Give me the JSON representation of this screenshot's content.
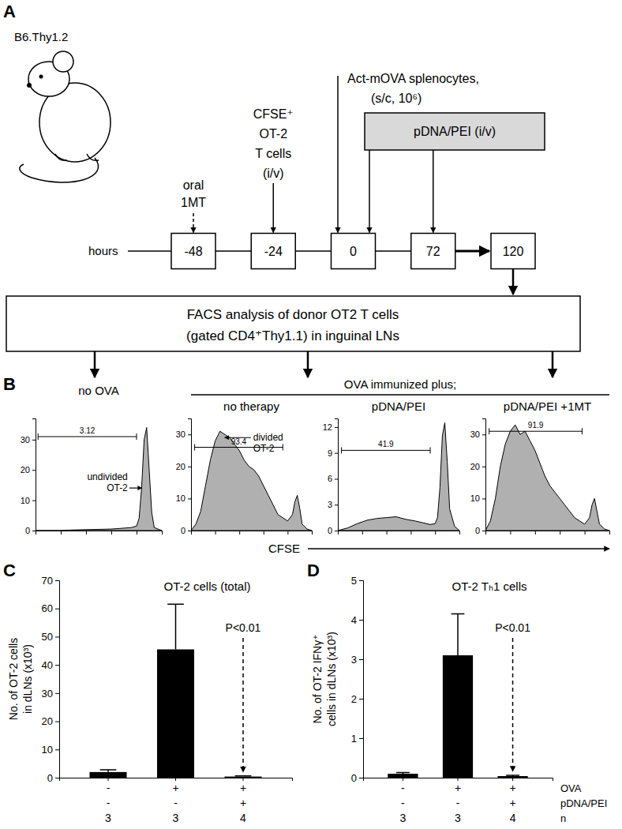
{
  "diagram": {
    "panel_label": "A",
    "mouse_label": "B6.Thy1.2",
    "timeline_label": "hours",
    "timepoints": [
      -48,
      -24,
      0,
      72,
      120
    ],
    "oral_treatment": [
      "oral",
      "1MT"
    ],
    "cell_transfer": [
      "CFSE⁺",
      "OT-2",
      "T cells",
      "(i/v)"
    ],
    "immunization": [
      "Act-mOVA splenocytes,",
      "(s/c, 10⁶)"
    ],
    "therapy": "pDNA/PEI (i/v)",
    "analysis": [
      "FACS analysis of donor OT2 T cells",
      "(gated CD4⁺Thy1.1) in inguinal LNs"
    ]
  },
  "panel_B": {
    "label": "B",
    "group_title": "OVA immunized plus;",
    "xlabel": "CFSE"
  },
  "chart_data": [
    {
      "type": "area",
      "title": "no OVA",
      "x": [
        0,
        10,
        20,
        30,
        40,
        50,
        60,
        70,
        76,
        80,
        82,
        84,
        86,
        88,
        90,
        92,
        94,
        100
      ],
      "values": [
        0,
        0,
        0,
        0.2,
        0.3,
        0.4,
        0.5,
        0.8,
        1,
        1.5,
        4,
        14,
        30,
        34,
        20,
        6,
        1,
        0
      ],
      "xlim": [
        0,
        100
      ],
      "xticks": [
        0,
        20,
        40,
        60,
        80,
        100
      ],
      "ylim": [
        0,
        37
      ],
      "yticks": [
        0,
        10,
        20,
        30
      ],
      "tick_labels": "y",
      "color": "#b0b0b0",
      "gate": {
        "x": [
          2,
          80
        ],
        "y": 31,
        "value": 3.12
      },
      "annotation": [
        "undivided",
        "OT-2"
      ]
    },
    {
      "type": "area",
      "title": "no therapy",
      "x": [
        0,
        4,
        8,
        12,
        16,
        20,
        24,
        28,
        32,
        36,
        40,
        44,
        48,
        52,
        56,
        60,
        64,
        68,
        72,
        76,
        80,
        84,
        86,
        88,
        90,
        92,
        96,
        100
      ],
      "values": [
        0,
        2,
        6,
        14,
        22,
        28,
        31,
        30,
        29,
        27,
        25,
        22,
        20,
        19,
        17,
        14,
        11,
        8,
        5,
        4,
        3,
        5,
        9,
        11,
        7,
        2,
        0.5,
        0
      ],
      "xlim": [
        0,
        100
      ],
      "xticks": [
        0,
        20,
        40,
        60,
        80,
        100
      ],
      "ylim": [
        0,
        35
      ],
      "yticks": [
        0,
        10,
        20,
        30
      ],
      "tick_labels": "y",
      "color": "#b0b0b0",
      "gate": {
        "x": [
          3,
          76
        ],
        "y": 26,
        "value": 93.4
      },
      "annotation": [
        "divided",
        "OT-2"
      ]
    },
    {
      "type": "area",
      "title": "pDNA/PEI",
      "x": [
        0,
        8,
        16,
        24,
        32,
        40,
        48,
        56,
        64,
        70,
        76,
        80,
        82,
        84,
        86,
        88,
        90,
        92,
        96,
        100
      ],
      "values": [
        0,
        0.3,
        0.8,
        1.2,
        1.4,
        1.5,
        1.6,
        1.3,
        1.1,
        0.9,
        0.7,
        0.8,
        1.5,
        5,
        11,
        12.5,
        8,
        2.5,
        0.5,
        0
      ],
      "xlim": [
        0,
        100
      ],
      "xticks": [
        0,
        20,
        40,
        60,
        80,
        100
      ],
      "ylim": [
        0,
        13
      ],
      "yticks": [
        0,
        3,
        6,
        9,
        12
      ],
      "tick_labels": "y",
      "color": "#b0b0b0",
      "gate": {
        "x": [
          3,
          76
        ],
        "y": 9.3,
        "value": 41.9
      }
    },
    {
      "type": "area",
      "title": "pDNA/PEI +1MT",
      "x": [
        0,
        4,
        8,
        12,
        16,
        20,
        24,
        28,
        32,
        36,
        40,
        44,
        48,
        52,
        56,
        60,
        64,
        68,
        72,
        76,
        80,
        84,
        86,
        88,
        90,
        92,
        96,
        100
      ],
      "values": [
        0,
        3,
        10,
        20,
        27,
        31,
        33,
        30,
        31,
        28,
        25,
        21,
        17,
        14,
        12,
        10,
        8,
        6,
        4,
        3,
        2,
        4,
        8,
        10,
        6,
        2,
        0.5,
        0
      ],
      "xlim": [
        0,
        100
      ],
      "xticks": [
        0,
        20,
        40,
        60,
        80,
        100
      ],
      "ylim": [
        0,
        35
      ],
      "yticks": [
        0,
        10,
        20,
        30
      ],
      "tick_labels": "y",
      "color": "#b0b0b0",
      "gate": {
        "x": [
          3,
          78
        ],
        "y": 31,
        "value": 91.9
      }
    },
    {
      "type": "bar",
      "panel_label": "C",
      "title": "OT-2 cells (total)",
      "ylabel": [
        "No. of OT-2 cells",
        "in dLNs (x10³)"
      ],
      "categories": [
        null,
        null,
        null
      ],
      "values": [
        2,
        45.5,
        0.4
      ],
      "errors": [
        0.8,
        16,
        0.2
      ],
      "ylim": [
        0,
        70
      ],
      "yticks": [
        0,
        10,
        20,
        30,
        40,
        50,
        60,
        70
      ],
      "color": "#000000",
      "annotation": "P<0.01",
      "x_table": [
        [
          "-",
          "+",
          "+"
        ],
        [
          "-",
          "-",
          "+"
        ],
        [
          3,
          3,
          4
        ]
      ]
    },
    {
      "type": "bar",
      "panel_label": "D",
      "title": "OT-2 Tₕ1 cells",
      "ylabel": [
        "No. of OT-2 IFNγ⁺",
        "cells in dLNs (x10³)"
      ],
      "categories": [
        null,
        null,
        null
      ],
      "values": [
        0.1,
        3.1,
        0.04
      ],
      "errors": [
        0.03,
        1.05,
        0.02
      ],
      "ylim": [
        0,
        5
      ],
      "yticks": [
        0,
        1,
        2,
        3,
        4,
        5
      ],
      "color": "#000000",
      "annotation": "P<0.01",
      "x_table": [
        [
          "-",
          "+",
          "+"
        ],
        [
          "-",
          "-",
          "+"
        ],
        [
          3,
          3,
          4
        ]
      ],
      "x_table_labels": [
        "OVA",
        "pDNA/PEI",
        "n"
      ]
    }
  ]
}
